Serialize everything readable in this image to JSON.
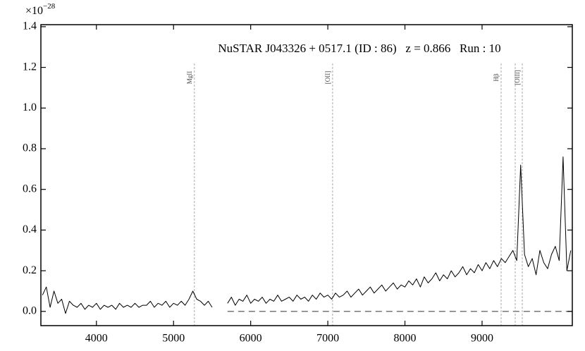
{
  "chart_data": {
    "type": "line",
    "title": "NuSTAR J043326 + 0517.1 (ID : 86)   z = 0.866   Run : 10",
    "offset_label": "×10",
    "offset_exponent": "−28",
    "x": [
      3300,
      3350,
      3400,
      3450,
      3500,
      3550,
      3600,
      3650,
      3700,
      3750,
      3800,
      3850,
      3900,
      3950,
      4000,
      4050,
      4100,
      4150,
      4200,
      4250,
      4300,
      4350,
      4400,
      4450,
      4500,
      4550,
      4600,
      4650,
      4700,
      4750,
      4800,
      4850,
      4900,
      4950,
      5000,
      5050,
      5100,
      5150,
      5200,
      5250,
      5300,
      5350,
      5400,
      5450,
      5500,
      5600,
      5700,
      5750,
      5800,
      5850,
      5900,
      5950,
      6000,
      6050,
      6100,
      6150,
      6200,
      6250,
      6300,
      6350,
      6400,
      6450,
      6500,
      6550,
      6600,
      6650,
      6700,
      6750,
      6800,
      6850,
      6900,
      6950,
      7000,
      7050,
      7100,
      7150,
      7200,
      7250,
      7300,
      7350,
      7400,
      7450,
      7500,
      7550,
      7600,
      7650,
      7700,
      7750,
      7800,
      7850,
      7900,
      7950,
      8000,
      8050,
      8100,
      8150,
      8200,
      8250,
      8300,
      8350,
      8400,
      8450,
      8500,
      8550,
      8600,
      8650,
      8700,
      8750,
      8800,
      8850,
      8900,
      8950,
      9000,
      9050,
      9100,
      9150,
      9200,
      9250,
      9300,
      9350,
      9400,
      9450,
      9500,
      9550,
      9600,
      9650,
      9700,
      9750,
      9800,
      9850,
      9900,
      9950,
      10000,
      10050,
      10100,
      10150
    ],
    "series": [
      {
        "color": "#000000",
        "values": [
          0.08,
          0.12,
          0.02,
          0.1,
          0.04,
          0.06,
          -0.01,
          0.05,
          0.03,
          0.02,
          0.04,
          0.01,
          0.03,
          0.02,
          0.04,
          0.01,
          0.03,
          0.02,
          0.03,
          0.01,
          0.04,
          0.02,
          0.03,
          0.02,
          0.04,
          0.02,
          0.03,
          0.03,
          0.05,
          0.02,
          0.04,
          0.03,
          0.05,
          0.02,
          0.04,
          0.03,
          0.05,
          0.03,
          0.06,
          0.1,
          0.06,
          0.05,
          0.03,
          0.05,
          0.02,
          null,
          0.04,
          0.07,
          0.03,
          0.06,
          0.05,
          0.08,
          0.04,
          0.06,
          0.05,
          0.07,
          0.04,
          0.06,
          0.05,
          0.08,
          0.05,
          0.06,
          0.07,
          0.05,
          0.08,
          0.06,
          0.07,
          0.05,
          0.08,
          0.06,
          0.09,
          0.07,
          0.08,
          0.06,
          0.09,
          0.07,
          0.08,
          0.1,
          0.07,
          0.09,
          0.11,
          0.08,
          0.1,
          0.12,
          0.09,
          0.11,
          0.13,
          0.1,
          0.12,
          0.14,
          0.11,
          0.13,
          0.12,
          0.15,
          0.13,
          0.16,
          0.12,
          0.17,
          0.14,
          0.16,
          0.19,
          0.15,
          0.18,
          0.16,
          0.2,
          0.17,
          0.19,
          0.22,
          0.18,
          0.21,
          0.19,
          0.23,
          0.2,
          0.24,
          0.21,
          0.25,
          0.22,
          0.26,
          0.24,
          0.27,
          0.3,
          0.25,
          0.72,
          0.28,
          0.22,
          0.26,
          0.18,
          0.3,
          0.24,
          0.21,
          0.28,
          0.32,
          0.25,
          0.76,
          0.2,
          0.3
        ]
      }
    ],
    "lines": [
      {
        "x": 5270,
        "label": "MgII"
      },
      {
        "x": 7062,
        "label": "[OII]"
      },
      {
        "x": 9247,
        "label": "Hβ"
      },
      {
        "x": 9430,
        "label": null
      },
      {
        "x": 9521,
        "label": "[OIII]"
      }
    ],
    "zero_line": 0,
    "xlim": [
      3280,
      10170
    ],
    "ylim": [
      -0.07,
      1.41
    ],
    "xticks": [
      4000,
      5000,
      6000,
      7000,
      8000,
      9000
    ],
    "yticks": [
      {
        "value": 0,
        "label": "0.0"
      },
      0.2,
      0.4,
      0.6,
      0.8,
      {
        "value": 1,
        "label": "1.0"
      },
      1.2,
      1.4
    ]
  }
}
